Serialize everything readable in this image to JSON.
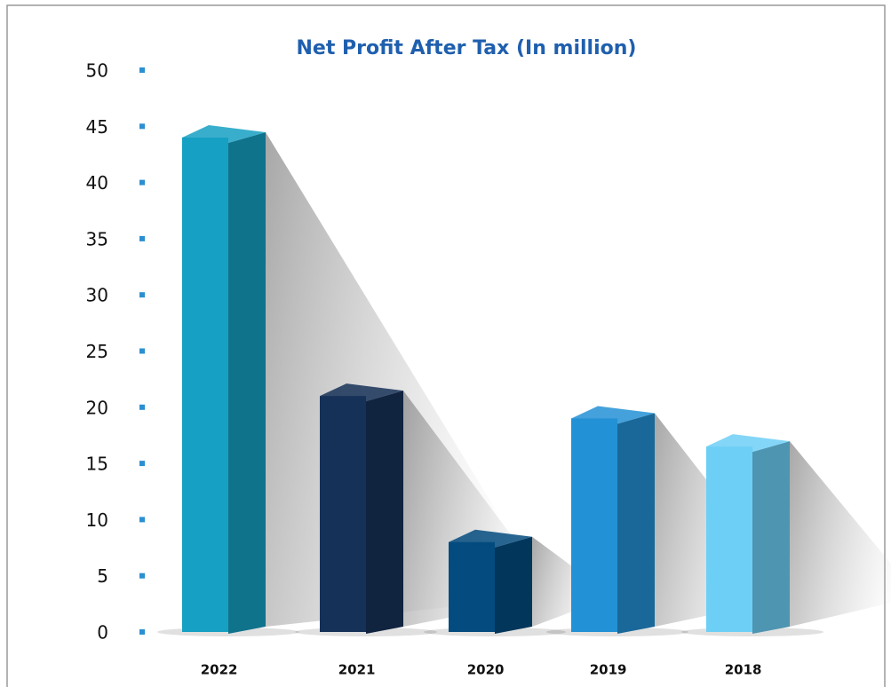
{
  "chart_data": {
    "type": "bar",
    "title": "Net Profit After Tax (In million)",
    "categories": [
      "2022",
      "2021",
      "2020",
      "2019",
      "2018"
    ],
    "values": [
      44,
      21,
      8,
      19,
      16.5
    ],
    "colors": [
      "#16a0c3",
      "#163158",
      "#044b7f",
      "#2391d5",
      "#6dcff6"
    ],
    "ylim": [
      0,
      50
    ],
    "yticks": [
      0,
      5,
      10,
      15,
      20,
      25,
      30,
      35,
      40,
      45,
      50
    ]
  }
}
